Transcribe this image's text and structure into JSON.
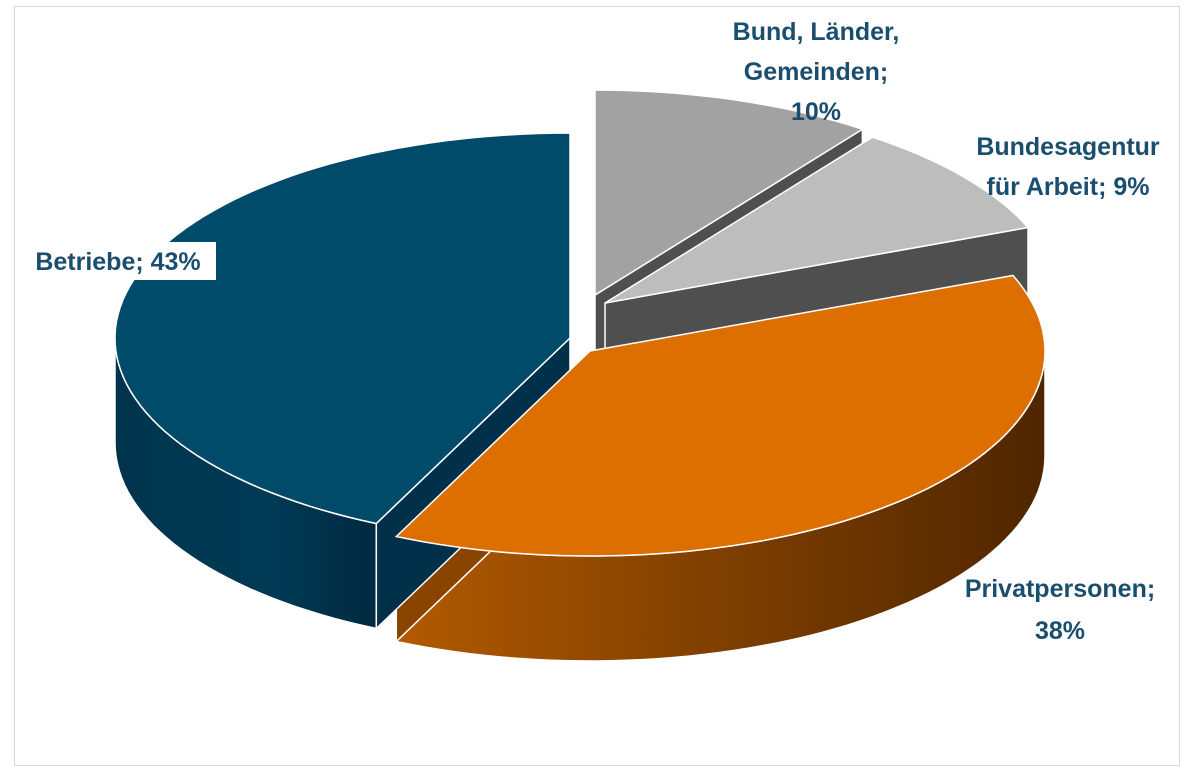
{
  "chart_data": {
    "type": "pie",
    "title": "",
    "style": "3d-exploded",
    "legend": "none",
    "slices": [
      {
        "name": "Bund, Länder, Gemeinden",
        "value": 10,
        "label_lines": [
          "Bund, Länder,",
          "Gemeinden;",
          "10%"
        ],
        "color": "#a2a2a2"
      },
      {
        "name": "Bundesagentur für Arbeit",
        "value": 9,
        "label_lines": [
          "Bundesagentur",
          "für Arbeit; 9%"
        ],
        "color": "#bdbdbd"
      },
      {
        "name": "Privatpersonen",
        "value": 38,
        "label_lines": [
          "Privatpersonen;",
          "38%"
        ],
        "color": "#dc6f00"
      },
      {
        "name": "Betriebe",
        "value": 43,
        "label_lines": [
          "Betriebe; 43%"
        ],
        "color": "#004a6a"
      }
    ]
  }
}
